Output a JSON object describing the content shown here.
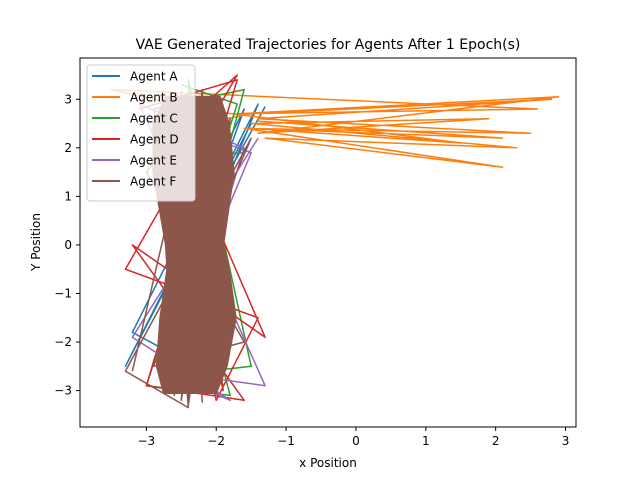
{
  "chart_data": {
    "type": "line",
    "title": "VAE Generated Trajectories for Agents After 1 Epoch(s)",
    "xlabel": "x Position",
    "ylabel": "Y Position",
    "xlim": [
      -3.95,
      3.15
    ],
    "ylim": [
      -3.75,
      3.85
    ],
    "xticks": [
      -3,
      -2,
      -1,
      0,
      1,
      2,
      3
    ],
    "yticks": [
      -3,
      -2,
      -1,
      0,
      1,
      2,
      3
    ],
    "xtick_labels": [
      "−3",
      "−2",
      "−1",
      "0",
      "1",
      "2",
      "3"
    ],
    "ytick_labels": [
      "−3",
      "−2",
      "−1",
      "0",
      "1",
      "2",
      "3"
    ],
    "legend_position": "top-left",
    "grid": false,
    "series": [
      {
        "name": "Agent A",
        "color": "#1f77b4",
        "x": [
          -2.3,
          -3.2,
          -1.6,
          -2.9,
          -1.4,
          -3.3,
          -1.5,
          -2.4,
          -1.3
        ],
        "y": [
          -2.5,
          -1.8,
          2.8,
          -2.4,
          2.9,
          -2.5,
          2.5,
          0.0,
          2.85
        ]
      },
      {
        "name": "Agent B",
        "color": "#ff7f0e",
        "x": [
          -2.2,
          -1.5,
          2.8,
          -1.4,
          2.5,
          -1.6,
          2.1,
          -1.3,
          2.3,
          -1.5,
          1.9,
          -1.4,
          2.9,
          -1.7,
          2.6,
          -3.5,
          -2.3,
          1.5,
          -1.5,
          2.1,
          -1.4
        ],
        "y": [
          2.5,
          2.7,
          3.0,
          2.6,
          2.3,
          2.4,
          1.6,
          2.2,
          2.0,
          2.5,
          2.6,
          2.3,
          3.05,
          2.7,
          2.8,
          3.2,
          2.8,
          2.1,
          2.4,
          2.2,
          2.55
        ]
      },
      {
        "name": "Agent C",
        "color": "#2ca02c",
        "x": [
          -2.5,
          -1.7,
          -3.0,
          -1.8,
          -2.9,
          -1.6,
          -2.7,
          -1.5,
          -2.4,
          -2.1,
          -2.7,
          -1.6
        ],
        "y": [
          3.3,
          2.9,
          -2.9,
          -3.1,
          2.8,
          3.2,
          -2.7,
          -2.5,
          3.4,
          -3.0,
          1.8,
          1.9
        ]
      },
      {
        "name": "Agent D",
        "color": "#d62728",
        "x": [
          -3.1,
          -1.7,
          -3.0,
          -1.6,
          -3.2,
          -1.3,
          -2.8,
          -1.9,
          -2.4,
          -1.7,
          -3.3,
          -1.4,
          -2.0,
          -2.9
        ],
        "y": [
          2.8,
          3.4,
          -2.9,
          -3.2,
          0.0,
          -1.9,
          3.1,
          -3.0,
          2.6,
          3.5,
          -0.5,
          -1.5,
          -3.2,
          2.4
        ]
      },
      {
        "name": "Agent E",
        "color": "#9467bd",
        "x": [
          -3.0,
          -1.5,
          -2.8,
          -1.3,
          -3.1,
          -1.6,
          -2.6,
          -1.8,
          -3.2,
          -1.4
        ],
        "y": [
          2.7,
          1.9,
          -2.6,
          -2.9,
          2.9,
          2.0,
          -2.7,
          -3.2,
          -1.9,
          2.2
        ]
      },
      {
        "name": "Agent F",
        "color": "#8c564b",
        "x": [
          -3.2,
          -2.3,
          -2.5,
          -2.1,
          -2.6,
          -2.0,
          -2.7,
          -1.9,
          -2.5,
          -2.2,
          -2.8,
          -1.8,
          -2.4,
          -2.2,
          -2.6,
          -2.1,
          -3.0,
          -1.6,
          -2.9,
          -1.5,
          -3.3,
          -2.4,
          -2.7,
          -2.0,
          -2.5,
          -2.2
        ],
        "y": [
          -2.6,
          3.0,
          -3.0,
          2.9,
          -2.9,
          3.1,
          -2.8,
          2.8,
          -3.2,
          3.1,
          -2.7,
          2.6,
          -3.3,
          3.2,
          -3.1,
          3.0,
          1.5,
          -2.0,
          -2.5,
          2.2,
          -2.6,
          -3.35,
          2.7,
          -3.0,
          3.15,
          -3.25
        ]
      }
    ],
    "fill_band": {
      "color": "#8c564b",
      "y": [
        -3.05,
        -2.5,
        -1.5,
        -0.5,
        0.0,
        0.5,
        1.5,
        2.5,
        3.05
      ],
      "x_left": [
        -2.75,
        -2.85,
        -2.8,
        -2.7,
        -2.72,
        -2.78,
        -2.9,
        -2.9,
        -2.72
      ],
      "x_right": [
        -2.0,
        -1.85,
        -1.72,
        -1.82,
        -1.9,
        -1.85,
        -1.75,
        -1.82,
        -1.95
      ]
    }
  }
}
